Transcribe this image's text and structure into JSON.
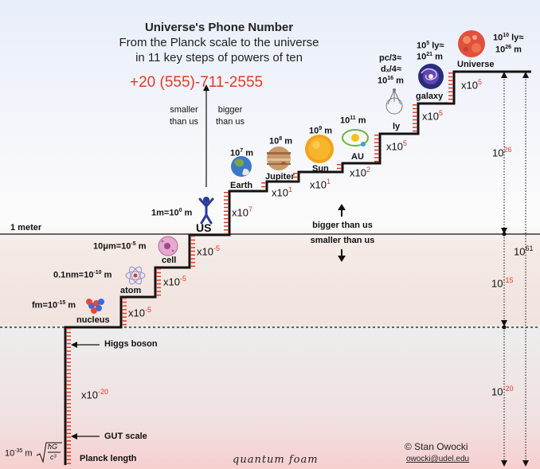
{
  "header": {
    "title": "Universe's Phone Number",
    "subtitle_line1": "From the Planck scale to the universe",
    "subtitle_line2": "in 11 key steps of powers of ten",
    "phone_number": "+20 (555)-711-2555"
  },
  "direction_labels": {
    "smaller": "smaller than us",
    "bigger": "bigger than us",
    "bigger_right": "bigger than us",
    "smaller_right": "smaller than us"
  },
  "meter_label": "1 meter",
  "us_label": "US",
  "us_scale": {
    "base": "1m=10",
    "exp": "0",
    "unit": " m"
  },
  "steps": {
    "earth": {
      "name": "Earth",
      "base": "10",
      "exp": "7",
      "unit": " m"
    },
    "jupiter": {
      "name": "Jupiter",
      "base": "10",
      "exp": "8",
      "unit": " m"
    },
    "sun": {
      "name": "Sun",
      "base": "10",
      "exp": "9",
      "unit": " m"
    },
    "au": {
      "name": "AU",
      "base": "10",
      "exp": "11",
      "unit": " m"
    },
    "ly": {
      "name": "ly",
      "line1": "pc/3≈",
      "line2": "dₓ/4≈",
      "base": "10",
      "exp": "16",
      "unit": " m"
    },
    "galaxy": {
      "name": "galaxy",
      "line1": "10",
      "line1_exp": "5",
      "line1_unit": " ly≈",
      "base": "10",
      "exp": "21",
      "unit": " m"
    },
    "universe": {
      "name": "Universe",
      "line1": "10",
      "line1_exp": "10",
      "line1_unit": " ly≈",
      "base": "10",
      "exp": "26",
      "unit": " m"
    },
    "cell": {
      "name": "cell",
      "prefix": "10μm=10",
      "exp": "-5",
      "unit": " m"
    },
    "atom": {
      "name": "atom",
      "prefix": "0.1nm=10",
      "exp": "-10",
      "unit": " m"
    },
    "nucleus": {
      "name": "nucleus",
      "prefix": "fm=10",
      "exp": "-15",
      "unit": " m"
    }
  },
  "multipliers": {
    "us_to_earth": {
      "x": "x10",
      "exp": "7"
    },
    "earth_to_jupiter": {
      "x": "x10",
      "exp": "1"
    },
    "jupiter_to_sun": {
      "x": "x10",
      "exp": "1"
    },
    "sun_to_au": {
      "x": "x10",
      "exp": "2"
    },
    "au_to_ly": {
      "x": "x10",
      "exp": "5"
    },
    "ly_to_galaxy": {
      "x": "x10",
      "exp": "5"
    },
    "galaxy_to_universe": {
      "x": "x10",
      "exp": "5"
    },
    "us_to_cell": {
      "x": "x10",
      "exp": "-5"
    },
    "cell_to_atom": {
      "x": "x10",
      "exp": "-5"
    },
    "atom_to_nucleus": {
      "x": "x10",
      "exp": "-5"
    },
    "nucleus_to_planck": {
      "x": "x10",
      "exp": "-20"
    }
  },
  "annotations": {
    "higgs": "Higgs boson",
    "gut": "GUT scale",
    "planck_length": "Planck length",
    "planck_value_base": "10",
    "planck_value_exp": "-35",
    "planck_value_unit": " m",
    "planck_formula_num": "ħG",
    "planck_formula_den": "c³",
    "quantum_foam": "quantum foam"
  },
  "right_scale": {
    "up": {
      "base": "10",
      "exp": "26"
    },
    "total": {
      "base": "10",
      "exp": "61"
    },
    "mid": {
      "base": "10",
      "exp": "-15"
    },
    "low": {
      "base": "10",
      "exp": "-20"
    }
  },
  "credit": {
    "author": "© Stan Owocki",
    "email": "owocki@udel.edu"
  },
  "colors": {
    "accent_red": "#e03a2a",
    "stair": "#111111",
    "rung": "#e03a2a"
  }
}
